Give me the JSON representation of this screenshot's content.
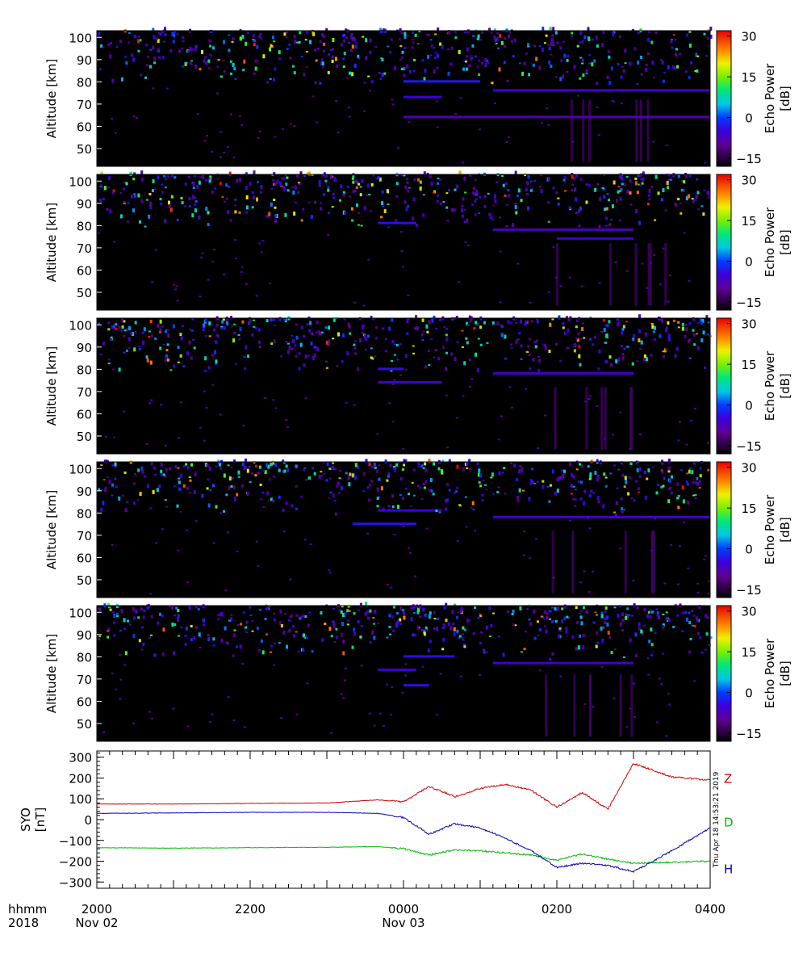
{
  "chart_data": [
    {
      "type": "heatmap",
      "panel": 1,
      "ylabel": "Altitude [km]",
      "yticks": [
        50,
        60,
        70,
        80,
        90,
        100
      ],
      "ylim": [
        42,
        103
      ],
      "colorbar": {
        "label": "Echo Power [dB]",
        "ticks": [
          -15,
          0,
          15,
          30
        ],
        "range": [
          -18,
          32
        ]
      },
      "features": [
        {
          "start": "0000",
          "end": "0400",
          "altitude": 64,
          "power": -8
        },
        {
          "start": "0110",
          "end": "0400",
          "altitude": 76,
          "power": -6
        },
        {
          "start": "0000",
          "end": "0100",
          "altitude": 80,
          "power": -3
        },
        {
          "start": "2400",
          "end": "0030",
          "altitude": 73,
          "power": -5
        }
      ]
    },
    {
      "type": "heatmap",
      "panel": 2,
      "ylabel": "Altitude [km]",
      "yticks": [
        50,
        60,
        70,
        80,
        90,
        100
      ],
      "ylim": [
        42,
        103
      ],
      "colorbar": {
        "label": "Echo Power [dB]",
        "ticks": [
          -15,
          0,
          15,
          30
        ],
        "range": [
          -18,
          32
        ]
      },
      "features": [
        {
          "start": "0110",
          "end": "0300",
          "altitude": 78,
          "power": -7
        },
        {
          "start": "2340",
          "end": "0010",
          "altitude": 81,
          "power": -4
        },
        {
          "start": "0200",
          "end": "0300",
          "altitude": 74,
          "power": -5
        }
      ]
    },
    {
      "type": "heatmap",
      "panel": 3,
      "ylabel": "Altitude [km]",
      "yticks": [
        50,
        60,
        70,
        80,
        90,
        100
      ],
      "ylim": [
        42,
        103
      ],
      "colorbar": {
        "label": "Echo Power [dB]",
        "ticks": [
          -15,
          0,
          15,
          30
        ],
        "range": [
          -18,
          32
        ]
      },
      "features": [
        {
          "start": "2340",
          "end": "0030",
          "altitude": 74,
          "power": -5
        },
        {
          "start": "0110",
          "end": "0300",
          "altitude": 78,
          "power": -6
        },
        {
          "start": "2340",
          "end": "0000",
          "altitude": 80,
          "power": -4
        }
      ]
    },
    {
      "type": "heatmap",
      "panel": 4,
      "ylabel": "Altitude [km]",
      "yticks": [
        50,
        60,
        70,
        80,
        90,
        100
      ],
      "ylim": [
        42,
        103
      ],
      "colorbar": {
        "label": "Echo Power [dB]",
        "ticks": [
          -15,
          0,
          15,
          30
        ],
        "range": [
          -18,
          32
        ]
      },
      "features": [
        {
          "start": "2320",
          "end": "0010",
          "altitude": 75,
          "power": -4
        },
        {
          "start": "0110",
          "end": "0400",
          "altitude": 78,
          "power": -6
        },
        {
          "start": "2340",
          "end": "0030",
          "altitude": 81,
          "power": -5
        }
      ]
    },
    {
      "type": "heatmap",
      "panel": 5,
      "ylabel": "Altitude [km]",
      "yticks": [
        50,
        60,
        70,
        80,
        90,
        100
      ],
      "ylim": [
        42,
        103
      ],
      "colorbar": {
        "label": "Echo Power [dB]",
        "ticks": [
          -15,
          0,
          15,
          30
        ],
        "range": [
          -18,
          32
        ]
      },
      "features": [
        {
          "start": "2400",
          "end": "0040",
          "altitude": 80,
          "power": -4
        },
        {
          "start": "0110",
          "end": "0300",
          "altitude": 77,
          "power": -6
        },
        {
          "start": "2340",
          "end": "0010",
          "altitude": 74,
          "power": -5
        },
        {
          "start": "2400",
          "end": "0020",
          "altitude": 67,
          "power": -4
        }
      ]
    },
    {
      "type": "line",
      "panel": 6,
      "ylabel": "SYO [nT]",
      "yticks": [
        -300,
        -200,
        -100,
        0,
        100,
        200,
        300
      ],
      "ylim": [
        -330,
        330
      ],
      "timestamp": "Thu Apr 18 14:53:21 2019",
      "series": [
        {
          "name": "Z",
          "color": "#cc0000",
          "x": [
            "2000",
            "2100",
            "2200",
            "2300",
            "2340",
            "0000",
            "0020",
            "0040",
            "0100",
            "0120",
            "0140",
            "0200",
            "0220",
            "0240",
            "0300",
            "0330",
            "0400"
          ],
          "y": [
            75,
            75,
            78,
            80,
            95,
            85,
            160,
            110,
            150,
            170,
            140,
            60,
            130,
            50,
            270,
            205,
            190
          ]
        },
        {
          "name": "D",
          "color": "#00bb00",
          "x": [
            "2000",
            "2100",
            "2200",
            "2300",
            "2340",
            "0000",
            "0020",
            "0040",
            "0100",
            "0120",
            "0140",
            "0200",
            "0220",
            "0240",
            "0300",
            "0330",
            "0400"
          ],
          "y": [
            -135,
            -137,
            -135,
            -133,
            -130,
            -140,
            -170,
            -145,
            -150,
            -160,
            -170,
            -195,
            -165,
            -190,
            -210,
            -205,
            -200
          ]
        },
        {
          "name": "H",
          "color": "#0000bb",
          "x": [
            "2000",
            "2100",
            "2200",
            "2300",
            "2340",
            "0000",
            "0020",
            "0040",
            "0100",
            "0120",
            "0140",
            "0200",
            "0220",
            "0240",
            "0300",
            "0330",
            "0400"
          ],
          "y": [
            30,
            32,
            35,
            35,
            30,
            10,
            -70,
            -20,
            -40,
            -90,
            -150,
            -230,
            -210,
            -220,
            -250,
            -150,
            -40
          ]
        }
      ]
    }
  ],
  "time_axis": {
    "row1_label": "hhmm",
    "row2_label": "2018",
    "ticks": [
      {
        "time": "2000",
        "date": "Nov 02"
      },
      {
        "time": "2200",
        "date": ""
      },
      {
        "time": "0000",
        "date": "Nov 03"
      },
      {
        "time": "0200",
        "date": ""
      },
      {
        "time": "0400",
        "date": ""
      }
    ]
  }
}
